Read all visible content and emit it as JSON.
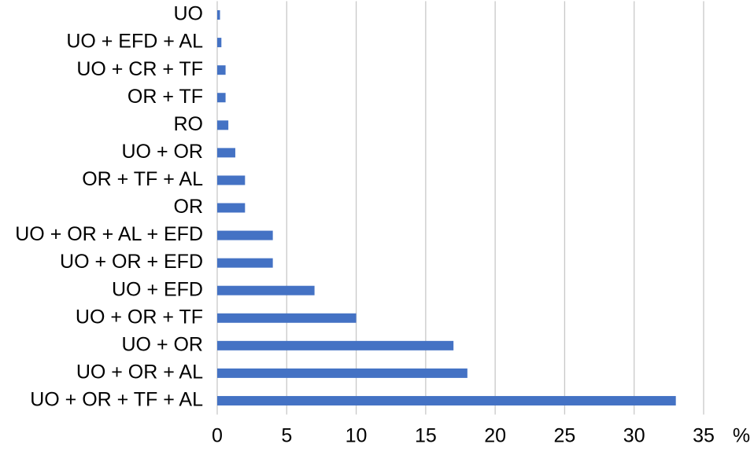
{
  "chart_data": {
    "type": "hbar",
    "categories": [
      "UO",
      "UO + EFD + AL",
      "UO + CR + TF",
      "OR + TF",
      "RO",
      "UO + OR",
      "OR + TF + AL",
      "OR",
      "UO + OR + AL + EFD",
      "UO + OR + EFD",
      "UO + EFD",
      "UO + OR + TF",
      "UO + OR",
      "UO + OR + AL",
      "UO + OR + TF + AL"
    ],
    "values": [
      0.2,
      0.3,
      0.6,
      0.6,
      0.8,
      1.3,
      2,
      2,
      4,
      4,
      7,
      10,
      17,
      18,
      33
    ],
    "color": "#4472c4",
    "xlabel": "%",
    "xlim": [
      0,
      35
    ],
    "xticks": [
      0,
      5,
      10,
      15,
      20,
      25,
      30,
      35
    ],
    "grid": true
  }
}
